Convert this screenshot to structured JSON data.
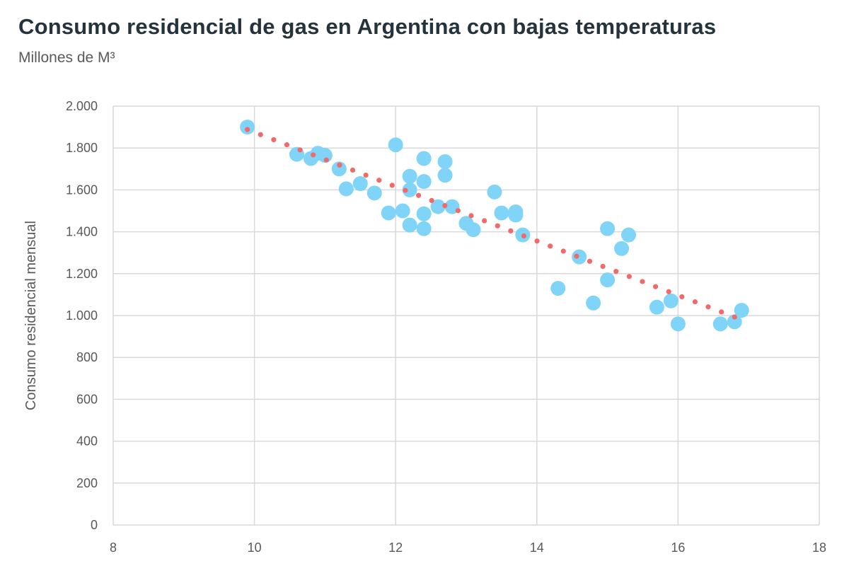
{
  "chart_data": {
    "type": "scatter",
    "title": "Consumo residencial de gas en Argentina con bajas temperaturas",
    "subtitle": "Millones de M³",
    "xlabel": "",
    "ylabel": "Consumo residencial mensual",
    "xlim": [
      8,
      18
    ],
    "ylim": [
      0,
      2000
    ],
    "xticks": [
      8,
      10,
      12,
      14,
      16,
      18
    ],
    "xtick_labels": [
      "8",
      "10",
      "12",
      "14",
      "16",
      "18"
    ],
    "yticks": [
      0,
      200,
      400,
      600,
      800,
      1000,
      1200,
      1400,
      1600,
      1800,
      2000
    ],
    "ytick_labels": [
      "0",
      "200",
      "400",
      "600",
      "800",
      "1.000",
      "1.200",
      "1.400",
      "1.600",
      "1.800",
      "2.000"
    ],
    "grid": true,
    "legend": "none",
    "colors": {
      "points": "#7fd4f8",
      "trendline": "#f06a6a",
      "grid": "#d9d9d9"
    },
    "points": [
      [
        9.9,
        1900
      ],
      [
        10.6,
        1770
      ],
      [
        10.8,
        1750
      ],
      [
        10.9,
        1775
      ],
      [
        11.0,
        1765
      ],
      [
        11.2,
        1700
      ],
      [
        11.3,
        1605
      ],
      [
        11.5,
        1630
      ],
      [
        11.7,
        1585
      ],
      [
        11.9,
        1490
      ],
      [
        12.0,
        1815
      ],
      [
        12.1,
        1500
      ],
      [
        12.2,
        1665
      ],
      [
        12.2,
        1600
      ],
      [
        12.2,
        1432
      ],
      [
        12.4,
        1750
      ],
      [
        12.4,
        1640
      ],
      [
        12.4,
        1486
      ],
      [
        12.4,
        1415
      ],
      [
        12.6,
        1520
      ],
      [
        12.7,
        1735
      ],
      [
        12.7,
        1670
      ],
      [
        12.8,
        1520
      ],
      [
        13.0,
        1440
      ],
      [
        13.1,
        1410
      ],
      [
        13.4,
        1590
      ],
      [
        13.5,
        1490
      ],
      [
        13.7,
        1495
      ],
      [
        13.7,
        1480
      ],
      [
        13.8,
        1385
      ],
      [
        14.3,
        1130
      ],
      [
        14.6,
        1280
      ],
      [
        14.8,
        1060
      ],
      [
        15.0,
        1415
      ],
      [
        15.0,
        1170
      ],
      [
        15.2,
        1320
      ],
      [
        15.3,
        1385
      ],
      [
        15.7,
        1040
      ],
      [
        15.9,
        1070
      ],
      [
        16.0,
        960
      ],
      [
        16.6,
        960
      ],
      [
        16.8,
        970
      ],
      [
        16.9,
        1025
      ]
    ],
    "trendline": {
      "type": "linear",
      "style": "dotted",
      "from": [
        9.9,
        1888
      ],
      "to": [
        16.8,
        993
      ]
    }
  }
}
